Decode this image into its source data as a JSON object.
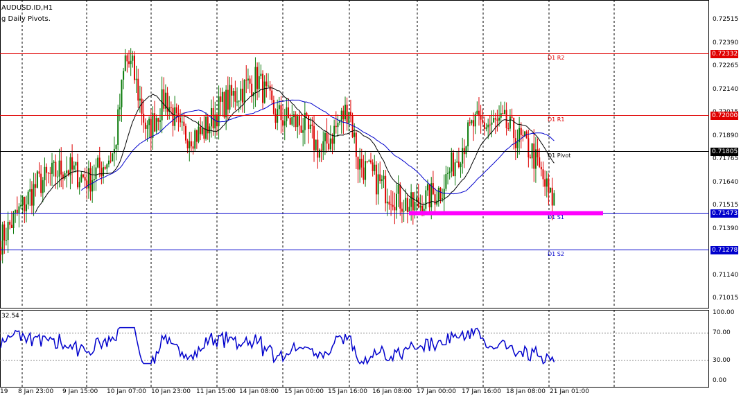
{
  "chart": {
    "symbol_line": "AUDUSD.ID,H1",
    "indicator_line": "g Daily Pivots.",
    "rsi_value": "32.54"
  },
  "pivots": [
    {
      "label": "D1 R2",
      "price": 0.72332,
      "tag": "0.72332",
      "color": "#e00000"
    },
    {
      "label": "D1 R1",
      "price": 0.72,
      "tag": "0.72000",
      "color": "#e00000"
    },
    {
      "label": "D1 Pivot",
      "price": 0.71805,
      "tag": "0.71805",
      "color": "#000000"
    },
    {
      "label": "D1 S1",
      "price": 0.71473,
      "tag": "0.71473",
      "color": "#0000cc"
    },
    {
      "label": "D1 S2",
      "price": 0.71278,
      "tag": "0.71278",
      "color": "#0000cc"
    }
  ],
  "price_axis": {
    "labels": [
      "0.72515",
      "0.72390",
      "0.72265",
      "0.72140",
      "0.72015",
      "0.71890",
      "0.71765",
      "0.71640",
      "0.71515",
      "0.71390",
      "0.71265",
      "0.71140",
      "0.71015"
    ],
    "min": 0.7096,
    "max": 0.7262
  },
  "indicator_axis": {
    "labels": [
      "100.00",
      "70.00",
      "30.00",
      "0.00"
    ]
  },
  "time_axis": {
    "labels": [
      "19",
      "8 Jan 23:00",
      "9 Jan 15:00",
      "10 Jan 07:00",
      "10 Jan 23:00",
      "11 Jan 15:00",
      "14 Jan 08:00",
      "15 Jan 00:00",
      "15 Jan 16:00",
      "16 Jan 08:00",
      "17 Jan 00:00",
      "17 Jan 16:00",
      "18 Jan 08:00",
      "21 Jan 01:00"
    ]
  },
  "colors": {
    "bull": "#0a7a0a",
    "bear": "#dd0000",
    "ma_fast": "#000000",
    "ma_slow": "#0000cc",
    "rsi": "#0000cc",
    "zone": "#ff00ff"
  }
}
